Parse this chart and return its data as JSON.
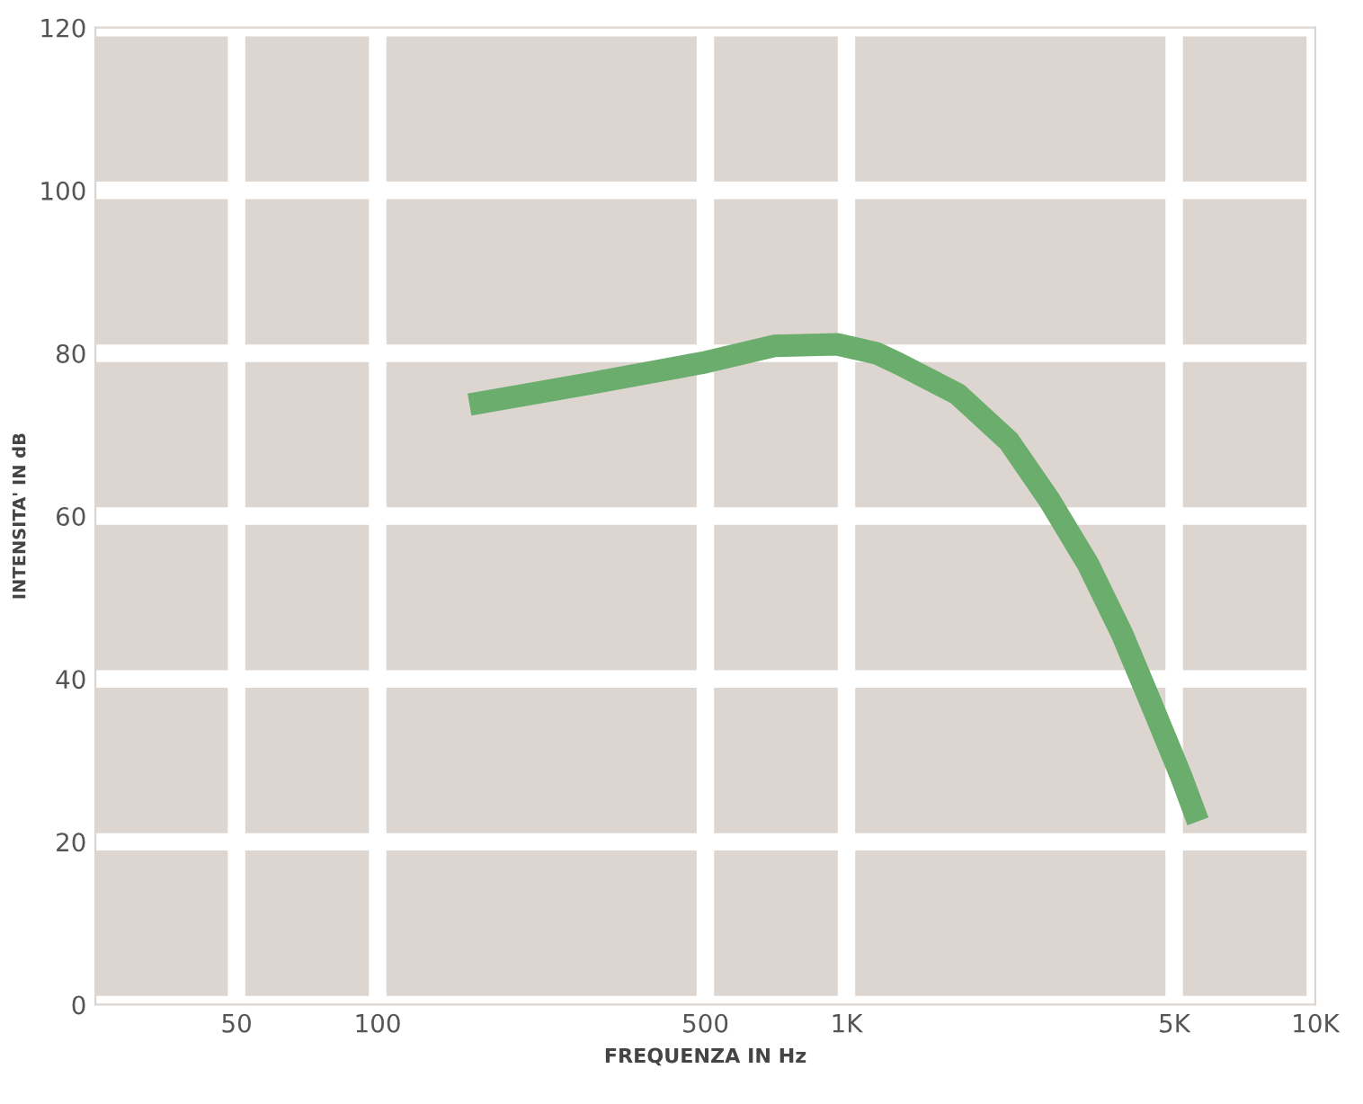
{
  "chart_data": {
    "type": "line",
    "xlabel": "FREQUENZA IN Hz",
    "ylabel": "INTENSITA' IN dB",
    "x": [
      157,
      284,
      500,
      700,
      955,
      1160,
      1295,
      1725,
      2220,
      2700,
      3275,
      3880,
      4480,
      5170,
      5620
    ],
    "series": [
      {
        "color": "#6aad6c",
        "values": [
          73.7,
          76.3,
          78.9,
          80.9,
          81.1,
          80.0,
          78.7,
          75.0,
          69.2,
          62.1,
          54.1,
          45.4,
          36.8,
          28.1,
          22.5
        ]
      }
    ],
    "log": "x",
    "xlim": [
      25,
      10000
    ],
    "xticks": [
      50,
      100,
      500,
      {
        "value": 1000,
        "label": "1K"
      },
      {
        "value": 5000,
        "label": "5K"
      },
      {
        "value": 10000,
        "label": "10K"
      }
    ],
    "ylim": [
      0,
      120
    ],
    "yticks": [
      0,
      20,
      40,
      60,
      80,
      100,
      120
    ],
    "grid": true,
    "marker": "none",
    "line_style": "solid"
  }
}
